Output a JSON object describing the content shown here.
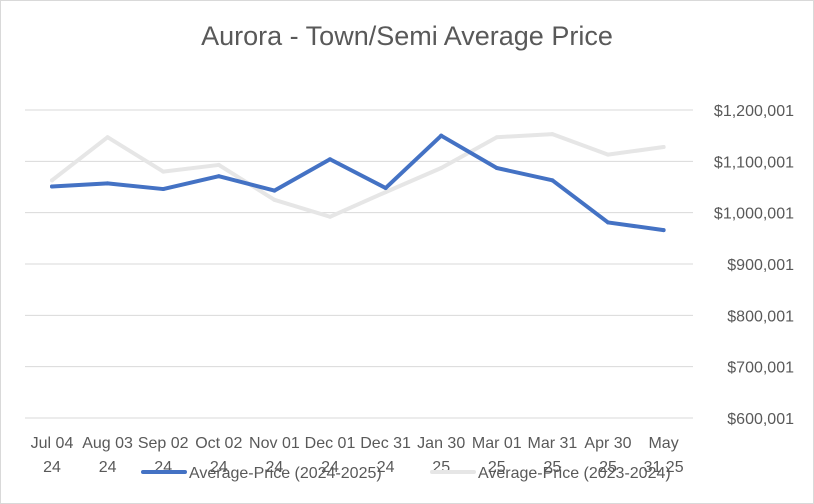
{
  "chart_data": {
    "type": "line",
    "title": "Aurora  - Town/Semi Average Price",
    "categories": [
      [
        "Jul 04",
        "24"
      ],
      [
        "Aug 03",
        "24"
      ],
      [
        "Sep 02",
        "24"
      ],
      [
        "Oct 02",
        "24"
      ],
      [
        "Nov 01",
        "24"
      ],
      [
        "Dec 01",
        "24"
      ],
      [
        "Dec 31",
        "24"
      ],
      [
        "Jan 30",
        "25"
      ],
      [
        "Mar 01",
        "25"
      ],
      [
        "Mar 31",
        "25"
      ],
      [
        "Apr 30",
        "25"
      ],
      [
        "May",
        "31 25"
      ]
    ],
    "y_ticks": [
      "$600,001",
      "$700,001",
      "$800,001",
      "$900,001",
      "$1,000,001",
      "$1,100,001",
      "$1,200,001"
    ],
    "ylim": [
      600001,
      1200001
    ],
    "y_axis_position": "right",
    "grid": true,
    "legend_position": "bottom",
    "series": [
      {
        "name": "Average-Price (2023-2024)",
        "color": "#e6e6e6",
        "values": [
          1063000,
          1147000,
          1080000,
          1093000,
          1025000,
          992000,
          1040000,
          1087000,
          1147000,
          1153000,
          1113000,
          1128000
        ]
      },
      {
        "name": "Average-Price (2024-2025)",
        "color": "#4472c4",
        "values": [
          1051000,
          1057000,
          1046000,
          1071000,
          1043000,
          1104000,
          1048000,
          1150000,
          1087000,
          1063000,
          981000,
          966000
        ]
      }
    ]
  }
}
